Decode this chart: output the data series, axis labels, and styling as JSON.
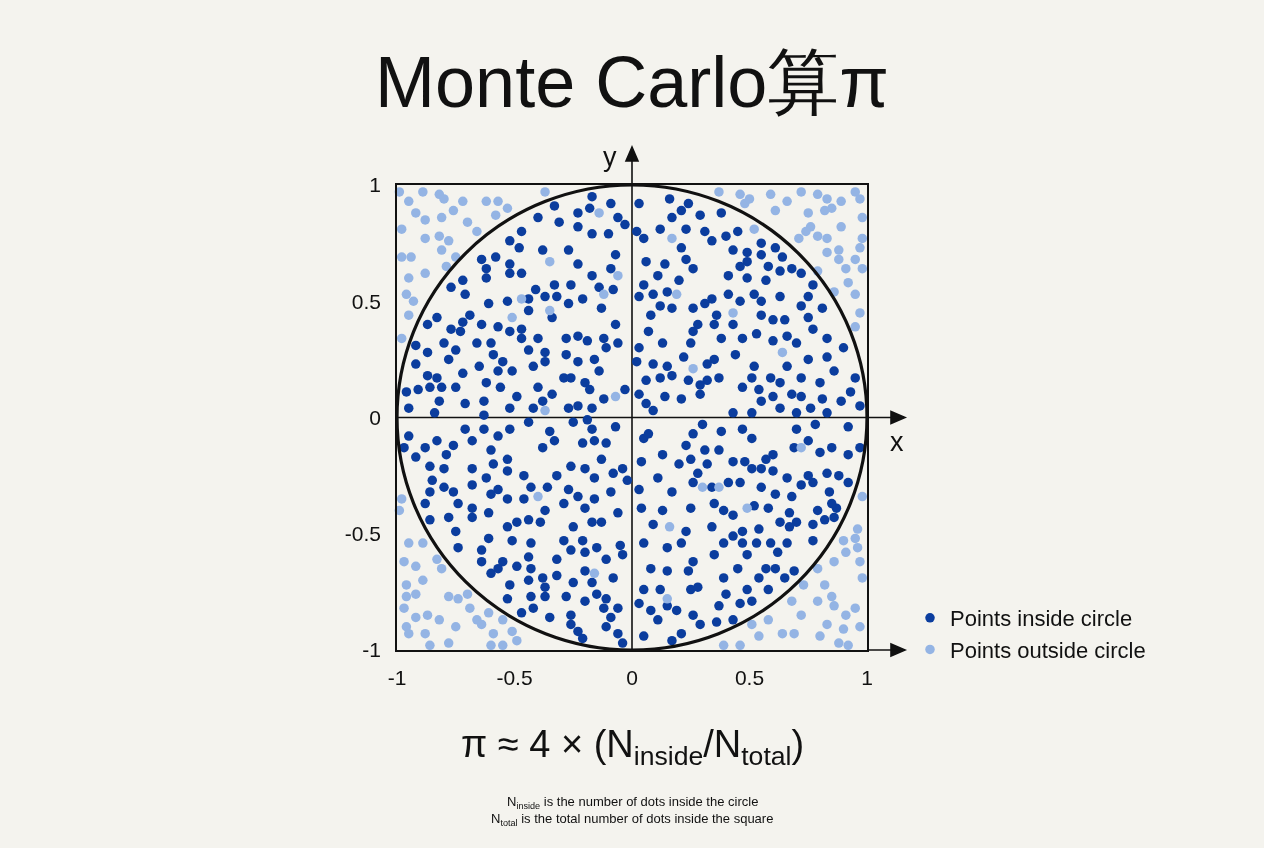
{
  "chart_data": {
    "type": "scatter",
    "title": "Monte Carlo算π",
    "annotations": [
      "π ≈ 4 × (N$_{inside}$/N$_{total}$)",
      "N$_{inside}$ is the number of dots inside the circle",
      "N$_{total}$ is the total number of dots inside the square"
    ],
    "xlim": [
      -1,
      1
    ],
    "ylim": [
      -1,
      1
    ],
    "xticks": [
      -1,
      -0.5,
      0,
      0.5,
      1
    ],
    "yticks": [
      -1,
      -0.5,
      0,
      0.5,
      1
    ],
    "legend": "bottom right",
    "marker": "circle",
    "ref_lines": [
      {
        "axis": "x",
        "value": 0,
        "label": "y",
        "color": "#111111"
      },
      {
        "axis": "y",
        "value": 0,
        "label": "x",
        "color": "#111111"
      }
    ],
    "series": [
      {
        "name": "Points inside circle",
        "color": "#0b3d9e",
        "x": [
          -0.17,
          -0.09,
          -0.33,
          -0.23,
          -0.18,
          -0.06,
          -0.4,
          -0.31,
          -0.03,
          -0.23,
          -0.17,
          -0.1,
          -0.47,
          -0.52,
          -0.48,
          -0.38,
          -0.27,
          -0.07,
          -0.64,
          -0.58,
          -0.52,
          -0.23,
          -0.09,
          -0.62,
          -0.52,
          -0.47,
          -0.17,
          -0.62,
          -0.72,
          -0.77,
          -0.41,
          -0.33,
          -0.26,
          -0.14,
          -0.08,
          -0.71,
          -0.37,
          -0.32,
          -0.21,
          -0.53,
          -0.44,
          -0.27,
          -0.61,
          -0.44,
          -0.13,
          -0.34,
          -0.69,
          -0.83,
          -0.87,
          -0.72,
          -0.64,
          -0.07,
          -0.77,
          -0.73,
          -0.57,
          -0.52,
          -0.47,
          -0.92,
          -0.8,
          -0.66,
          -0.6,
          -0.47,
          -0.4,
          -0.28,
          -0.23,
          -0.19,
          -0.12,
          -0.06,
          -0.87,
          -0.75,
          -0.59,
          -0.44,
          -0.37,
          -0.28,
          -0.11,
          -0.92,
          -0.78,
          -0.65,
          -0.55,
          -0.42,
          -0.37,
          -0.23,
          -0.16,
          -0.87,
          -0.72,
          -0.57,
          -0.51,
          -0.14,
          -0.83,
          -0.29,
          -0.91,
          -0.86,
          -0.81,
          -0.75,
          -0.62,
          -0.56,
          -0.4,
          -0.34,
          -0.26,
          -0.2,
          -0.18,
          -0.12,
          -0.03,
          -0.96,
          -0.95,
          -0.82,
          -0.71,
          -0.63,
          -0.49,
          -0.38,
          -0.52,
          -0.42,
          -0.27,
          -0.23,
          -0.17,
          -0.84,
          -0.63,
          0.03,
          0.16,
          0.24,
          0.21,
          0.38,
          0.29,
          0.17,
          0.02,
          0.12,
          0.23,
          0.31,
          0.4,
          0.45,
          0.34,
          0.05,
          0.21,
          0.43,
          0.55,
          0.61,
          0.49,
          0.55,
          0.64,
          0.23,
          0.06,
          0.14,
          0.26,
          0.49,
          0.46,
          0.58,
          0.63,
          0.68,
          0.72,
          0.11,
          0.2,
          0.41,
          0.49,
          0.57,
          0.77,
          0.05,
          0.09,
          0.15,
          0.03,
          0.34,
          0.41,
          0.52,
          0.63,
          0.75,
          0.46,
          0.55,
          0.12,
          0.17,
          0.26,
          0.31,
          0.72,
          0.81,
          0.08,
          0.36,
          0.55,
          0.6,
          0.65,
          0.75,
          0.28,
          0.35,
          0.43,
          0.77,
          0.07,
          0.26,
          0.38,
          0.47,
          0.53,
          0.6,
          0.66,
          0.7,
          0.83,
          0.13,
          0.25,
          0.03,
          0.44,
          0.22,
          0.35,
          0.75,
          0.83,
          0.9,
          0.02,
          0.09,
          0.15,
          0.32,
          0.52,
          0.66,
          0.86,
          0.06,
          0.12,
          0.17,
          0.24,
          0.32,
          0.37,
          0.51,
          0.59,
          0.63,
          0.72,
          0.95,
          0.29,
          0.47,
          0.54,
          0.68,
          0.8,
          0.93,
          0.03,
          0.14,
          0.21,
          0.29,
          0.55,
          0.6,
          0.72,
          0.81,
          0.89,
          0.06,
          0.09,
          0.43,
          0.51,
          0.63,
          0.7,
          0.76,
          0.83,
          0.97,
          -0.95,
          -0.97,
          -0.88,
          -0.83,
          -0.92,
          -0.79,
          -0.71,
          -0.63,
          -0.68,
          -0.57,
          -0.52,
          -0.44,
          -0.35,
          -0.33,
          -0.38,
          -0.6,
          -0.76,
          -0.86,
          -0.8,
          -0.68,
          -0.59,
          -0.53,
          -0.53,
          -0.62,
          -0.85,
          -0.46,
          -0.43,
          -0.68,
          -0.8,
          -0.86,
          -0.76,
          -0.57,
          -0.36,
          -0.32,
          -0.26,
          -0.21,
          -0.16,
          -0.13,
          -0.07,
          -0.11,
          -0.04,
          -0.2,
          -0.16,
          -0.08,
          -0.02,
          -0.27,
          -0.23,
          -0.16,
          -0.09,
          -0.88,
          -0.74,
          -0.68,
          -0.6,
          -0.53,
          -0.46,
          -0.37,
          -0.29,
          -0.2,
          -0.06,
          -0.78,
          -0.68,
          -0.61,
          -0.86,
          -0.53,
          -0.49,
          -0.44,
          -0.39,
          -0.25,
          -0.17,
          -0.13,
          -0.75,
          -0.61,
          -0.51,
          -0.43,
          -0.29,
          -0.21,
          -0.05,
          -0.74,
          -0.64,
          -0.26,
          -0.2,
          -0.15,
          -0.11,
          -0.04,
          -0.64,
          -0.55,
          -0.49,
          -0.44,
          -0.32,
          -0.2,
          -0.6,
          -0.57,
          -0.43,
          -0.38,
          -0.32,
          -0.25,
          -0.17,
          -0.08,
          -0.52,
          -0.44,
          -0.37,
          -0.37,
          -0.28,
          -0.2,
          -0.15,
          -0.11,
          -0.06,
          -0.53,
          -0.43,
          -0.42,
          -0.47,
          -0.35,
          -0.26,
          -0.26,
          -0.12,
          -0.09,
          -0.23,
          -0.11,
          -0.21,
          -0.06,
          -0.04,
          -0.25,
          -0.19,
          -0.17,
          0.05,
          0.07,
          0.23,
          0.26,
          0.3,
          0.38,
          0.47,
          0.51,
          0.7,
          0.75,
          0.78,
          0.92,
          0.97,
          0.92,
          0.85,
          0.8,
          0.69,
          0.6,
          0.57,
          0.48,
          0.37,
          0.31,
          0.25,
          0.13,
          0.2,
          0.04,
          0.11,
          0.28,
          0.32,
          0.43,
          0.51,
          0.55,
          0.6,
          0.66,
          0.75,
          0.83,
          0.88,
          0.92,
          0.77,
          0.72,
          0.55,
          0.46,
          0.41,
          0.34,
          0.26,
          0.17,
          0.03,
          0.61,
          0.68,
          0.84,
          0.79,
          0.87,
          0.85,
          0.67,
          0.58,
          0.52,
          0.43,
          0.39,
          0.35,
          0.25,
          0.13,
          0.04,
          0.86,
          0.82,
          0.7,
          0.63,
          0.77,
          0.67,
          0.54,
          0.47,
          0.34,
          0.23,
          0.09,
          0.77,
          0.66,
          0.59,
          0.53,
          0.47,
          0.43,
          0.39,
          0.21,
          0.05,
          0.62,
          0.49,
          0.35,
          0.26,
          0.15,
          0.08,
          0.15,
          0.24,
          0.45,
          0.57,
          0.61,
          0.69,
          0.54,
          0.65,
          0.39,
          0.05,
          0.12,
          0.25,
          0.28,
          0.4,
          0.49,
          0.58,
          0.03,
          0.15,
          0.19,
          0.08,
          0.26,
          0.11,
          0.29,
          0.36,
          0.37,
          0.46,
          0.51,
          0.43,
          0.21,
          0.05,
          0.17
        ],
        "values": [
          0.95,
          0.92,
          0.91,
          0.88,
          0.9,
          0.86,
          0.86,
          0.84,
          0.83,
          0.82,
          0.79,
          0.79,
          0.8,
          0.76,
          0.73,
          0.72,
          0.72,
          0.7,
          0.68,
          0.69,
          0.66,
          0.66,
          0.64,
          0.64,
          0.62,
          0.62,
          0.61,
          0.6,
          0.59,
          0.56,
          0.55,
          0.57,
          0.57,
          0.56,
          0.55,
          0.53,
          0.52,
          0.52,
          0.51,
          0.5,
          0.51,
          0.49,
          0.49,
          0.46,
          0.47,
          0.43,
          0.44,
          0.43,
          0.4,
          0.41,
          0.4,
          0.4,
          0.38,
          0.37,
          0.39,
          0.37,
          0.38,
          0.31,
          0.32,
          0.32,
          0.32,
          0.34,
          0.34,
          0.34,
          0.35,
          0.33,
          0.34,
          0.32,
          0.28,
          0.29,
          0.27,
          0.29,
          0.28,
          0.27,
          0.3,
          0.23,
          0.25,
          0.22,
          0.24,
          0.22,
          0.24,
          0.24,
          0.25,
          0.18,
          0.19,
          0.2,
          0.2,
          0.2,
          0.17,
          0.17,
          0.12,
          0.13,
          0.13,
          0.13,
          0.15,
          0.13,
          0.13,
          0.1,
          0.17,
          0.15,
          0.12,
          0.08,
          0.12,
          0.11,
          0.04,
          0.07,
          0.06,
          0.07,
          0.09,
          0.07,
          0.04,
          0.04,
          0.04,
          0.05,
          0.04,
          0.02,
          0.01,
          0.92,
          0.94,
          0.92,
          0.89,
          0.88,
          0.87,
          0.86,
          0.8,
          0.81,
          0.81,
          0.8,
          0.78,
          0.8,
          0.76,
          0.77,
          0.73,
          0.72,
          0.75,
          0.73,
          0.71,
          0.7,
          0.69,
          0.68,
          0.67,
          0.66,
          0.64,
          0.67,
          0.65,
          0.65,
          0.63,
          0.64,
          0.62,
          0.61,
          0.59,
          0.61,
          0.6,
          0.59,
          0.57,
          0.57,
          0.53,
          0.54,
          0.52,
          0.51,
          0.53,
          0.53,
          0.52,
          0.52,
          0.5,
          0.5,
          0.48,
          0.47,
          0.47,
          0.49,
          0.48,
          0.47,
          0.44,
          0.44,
          0.44,
          0.42,
          0.42,
          0.43,
          0.4,
          0.4,
          0.4,
          0.38,
          0.37,
          0.37,
          0.34,
          0.34,
          0.36,
          0.33,
          0.35,
          0.32,
          0.34,
          0.32,
          0.32,
          0.3,
          0.27,
          0.26,
          0.25,
          0.25,
          0.26,
          0.3,
          0.24,
          0.23,
          0.22,
          0.23,
          0.22,
          0.22,
          0.2,
          0.16,
          0.17,
          0.18,
          0.16,
          0.16,
          0.17,
          0.17,
          0.17,
          0.15,
          0.17,
          0.17,
          0.14,
          0.13,
          0.12,
          0.1,
          0.15,
          0.11,
          0.1,
          0.09,
          0.08,
          0.1,
          0.07,
          0.09,
          0.09,
          0.08,
          0.07,
          0.06,
          0.03,
          0.02,
          0.02,
          0.04,
          0.02,
          0.04,
          0.02,
          0.05,
          -0.08,
          -0.13,
          -0.13,
          -0.1,
          -0.17,
          -0.16,
          -0.05,
          -0.05,
          -0.1,
          -0.08,
          -0.05,
          -0.02,
          -0.06,
          -0.1,
          -0.13,
          -0.14,
          -0.12,
          -0.21,
          -0.22,
          -0.22,
          -0.2,
          -0.18,
          -0.23,
          -0.26,
          -0.27,
          -0.25,
          -0.3,
          -0.29,
          -0.3,
          -0.32,
          -0.32,
          -0.31,
          -0.3,
          -0.25,
          -0.21,
          -0.11,
          -0.1,
          -0.18,
          -0.04,
          -0.11,
          -0.22,
          -0.22,
          -0.26,
          -0.24,
          -0.27,
          -0.31,
          -0.34,
          -0.35,
          -0.32,
          -0.37,
          -0.37,
          -0.39,
          -0.33,
          -0.35,
          -0.35,
          -0.4,
          -0.37,
          -0.39,
          -0.41,
          -0.43,
          -0.43,
          -0.41,
          -0.44,
          -0.47,
          -0.45,
          -0.44,
          -0.45,
          -0.47,
          -0.45,
          -0.45,
          -0.49,
          -0.52,
          -0.53,
          -0.54,
          -0.53,
          -0.53,
          -0.55,
          -0.56,
          -0.57,
          -0.57,
          -0.58,
          -0.56,
          -0.61,
          -0.59,
          -0.62,
          -0.62,
          -0.64,
          -0.6,
          -0.61,
          -0.66,
          -0.67,
          -0.65,
          -0.65,
          -0.69,
          -0.68,
          -0.71,
          -0.71,
          -0.69,
          -0.72,
          -0.7,
          -0.73,
          -0.77,
          -0.77,
          -0.79,
          -0.76,
          -0.78,
          -0.82,
          -0.78,
          -0.77,
          -0.82,
          -0.84,
          -0.86,
          -0.85,
          -0.89,
          -0.82,
          -0.86,
          -0.92,
          -0.9,
          -0.95,
          -0.93,
          -0.97,
          -0.02,
          -0.01,
          -0.05,
          -0.09,
          -0.07,
          -0.12,
          -0.07,
          -0.03,
          -0.06,
          -0.05,
          -0.09,
          -0.05,
          -0.1,
          -0.03,
          -0.04,
          -0.13,
          -0.16,
          -0.13,
          -0.15,
          -0.13,
          -0.16,
          -0.18,
          -0.19,
          -0.14,
          -0.14,
          -0.18,
          -0.16,
          -0.2,
          -0.19,
          -0.26,
          -0.24,
          -0.2,
          -0.19,
          -0.22,
          -0.22,
          -0.23,
          -0.26,
          -0.25,
          -0.24,
          -0.25,
          -0.28,
          -0.28,
          -0.29,
          -0.3,
          -0.28,
          -0.28,
          -0.3,
          -0.28,
          -0.32,
          -0.31,
          -0.33,
          -0.34,
          -0.32,
          -0.4,
          -0.39,
          -0.37,
          -0.41,
          -0.39,
          -0.38,
          -0.42,
          -0.4,
          -0.37,
          -0.39,
          -0.4,
          -0.39,
          -0.43,
          -0.44,
          -0.45,
          -0.45,
          -0.46,
          -0.47,
          -0.48,
          -0.49,
          -0.47,
          -0.49,
          -0.46,
          -0.53,
          -0.54,
          -0.54,
          -0.54,
          -0.54,
          -0.51,
          -0.54,
          -0.54,
          -0.54,
          -0.58,
          -0.59,
          -0.59,
          -0.62,
          -0.56,
          -0.65,
          -0.66,
          -0.66,
          -0.65,
          -0.65,
          -0.65,
          -0.66,
          -0.69,
          -0.69,
          -0.69,
          -0.74,
          -0.74,
          -0.74,
          -0.73,
          -0.76,
          -0.74,
          -0.74,
          -0.8,
          -0.81,
          -0.83,
          -0.83,
          -0.85,
          -0.87,
          -0.89,
          -0.88,
          -0.81,
          -0.8,
          -0.79,
          -0.87,
          -0.93,
          -0.94,
          -0.96
        ]
      },
      {
        "name": "Points outside circle",
        "color": "#94b4e4",
        "x": [
          -0.99,
          -0.89,
          -0.82,
          -0.8,
          -0.95,
          -0.72,
          -0.62,
          -0.57,
          -0.53,
          -0.76,
          -0.92,
          -0.88,
          -0.81,
          -0.7,
          -0.58,
          -0.37,
          -0.98,
          -0.66,
          -0.82,
          -0.78,
          -0.88,
          -0.81,
          -0.98,
          -0.94,
          -0.75,
          -0.79,
          -0.88,
          -0.95,
          -0.96,
          -0.93,
          -0.95,
          -0.98,
          -0.14,
          -0.35,
          -0.47,
          -0.51,
          -0.35,
          -0.12,
          -0.06,
          -0.07,
          -0.37,
          0.37,
          0.46,
          0.48,
          0.5,
          0.59,
          0.66,
          0.61,
          0.72,
          0.79,
          0.83,
          0.75,
          0.82,
          0.85,
          0.89,
          0.95,
          0.97,
          0.98,
          0.89,
          0.76,
          0.74,
          0.79,
          0.83,
          0.71,
          0.98,
          0.88,
          0.83,
          0.88,
          0.95,
          0.97,
          0.91,
          0.98,
          0.79,
          0.92,
          0.86,
          0.95,
          0.97,
          0.95,
          0.52,
          0.17,
          0.19,
          0.43,
          0.64,
          0.26,
          -0.98,
          -0.99,
          -0.95,
          -0.89,
          -0.97,
          -0.92,
          -0.83,
          -0.81,
          -0.89,
          -0.96,
          -0.96,
          -0.92,
          -0.78,
          -0.74,
          -0.7,
          -0.97,
          -0.92,
          -0.87,
          -0.82,
          -0.69,
          -0.66,
          -0.61,
          -0.64,
          -0.55,
          -0.75,
          -0.96,
          -0.95,
          -0.88,
          -0.59,
          -0.51,
          -0.49,
          -0.86,
          -0.78,
          -0.6,
          -0.55,
          -0.4,
          -0.16,
          0.98,
          0.96,
          0.9,
          0.95,
          0.91,
          0.96,
          0.86,
          0.97,
          0.79,
          0.98,
          0.73,
          0.82,
          0.85,
          0.68,
          0.79,
          0.86,
          0.95,
          0.72,
          0.91,
          0.83,
          0.9,
          0.97,
          0.51,
          0.58,
          0.54,
          0.64,
          0.69,
          0.8,
          0.88,
          0.92,
          0.39,
          0.46,
          0.16,
          0.49,
          0.3,
          0.37,
          0.15,
          0.72
        ],
        "values": [
          0.97,
          0.97,
          0.96,
          0.94,
          0.93,
          0.93,
          0.93,
          0.93,
          0.9,
          0.89,
          0.88,
          0.85,
          0.86,
          0.84,
          0.87,
          0.97,
          0.81,
          0.8,
          0.78,
          0.76,
          0.77,
          0.72,
          0.69,
          0.69,
          0.69,
          0.65,
          0.62,
          0.6,
          0.53,
          0.5,
          0.44,
          0.34,
          0.88,
          0.67,
          0.51,
          0.43,
          0.46,
          0.53,
          0.61,
          0.09,
          0.03,
          0.97,
          0.96,
          0.92,
          0.94,
          0.96,
          0.93,
          0.89,
          0.97,
          0.96,
          0.94,
          0.88,
          0.89,
          0.9,
          0.93,
          0.97,
          0.94,
          0.86,
          0.82,
          0.82,
          0.8,
          0.78,
          0.77,
          0.77,
          0.77,
          0.72,
          0.71,
          0.68,
          0.68,
          0.73,
          0.64,
          0.64,
          0.63,
          0.58,
          0.54,
          0.53,
          0.45,
          0.39,
          0.81,
          0.77,
          0.53,
          0.45,
          0.28,
          0.21,
          -0.35,
          -0.4,
          -0.54,
          -0.54,
          -0.62,
          -0.64,
          -0.61,
          -0.65,
          -0.7,
          -0.72,
          -0.77,
          -0.76,
          -0.77,
          -0.78,
          -0.76,
          -0.82,
          -0.86,
          -0.85,
          -0.87,
          -0.82,
          -0.87,
          -0.84,
          -0.89,
          -0.87,
          -0.9,
          -0.9,
          -0.93,
          -0.93,
          -0.93,
          -0.92,
          -0.96,
          -0.98,
          -0.97,
          -0.98,
          -0.98,
          -0.34,
          -0.67,
          -0.34,
          -0.48,
          -0.53,
          -0.52,
          -0.58,
          -0.56,
          -0.62,
          -0.62,
          -0.65,
          -0.69,
          -0.72,
          -0.72,
          -0.77,
          -0.79,
          -0.79,
          -0.81,
          -0.82,
          -0.85,
          -0.85,
          -0.89,
          -0.91,
          -0.9,
          -0.89,
          -0.87,
          -0.94,
          -0.93,
          -0.93,
          -0.94,
          -0.97,
          -0.98,
          -0.98,
          -0.98,
          -0.47,
          -0.39,
          -0.3,
          -0.3,
          -0.78,
          -0.13
        ]
      }
    ]
  }
}
